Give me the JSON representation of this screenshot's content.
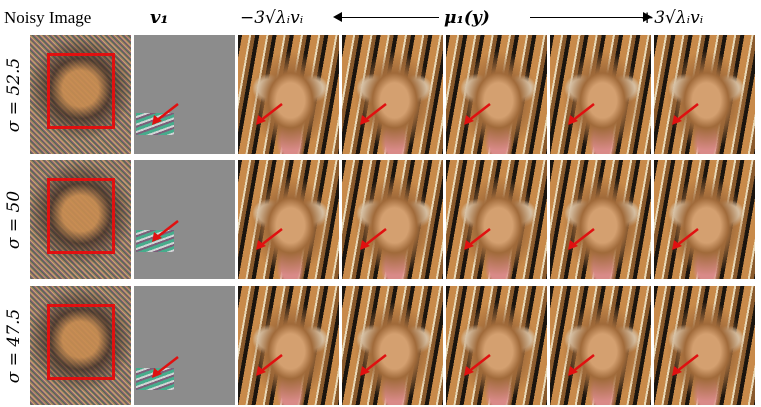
{
  "header": {
    "noisy": "Noisy Image",
    "v1": "v₁",
    "left": "−3√λᵢvᵢ",
    "mid": "μ₁(y)",
    "right": "+3√λᵢvᵢ"
  },
  "rows": [
    {
      "sigma": "σ = 52.5"
    },
    {
      "sigma": "σ = 50"
    },
    {
      "sigma": "σ = 47.5"
    }
  ],
  "colors": {
    "box": "#e01010",
    "arrow": "#e01010"
  }
}
